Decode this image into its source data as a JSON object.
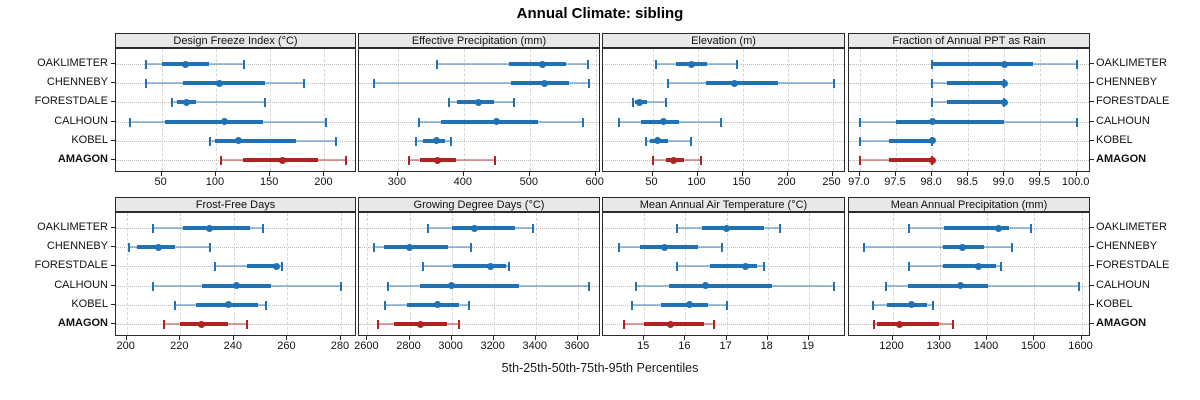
{
  "chart_data": {
    "type": "multipanel-percentile-dotplot",
    "title": "Annual Climate: sibling",
    "caption": "5th-25th-50th-75th-95th Percentiles",
    "percentile_order": [
      "p5",
      "p25",
      "p50",
      "p75",
      "p95"
    ],
    "stations": [
      "OAKLIMETER",
      "CHENNEBY",
      "FORESTDALE",
      "CALHOUN",
      "KOBEL",
      "AMAGON"
    ],
    "highlight_station": "AMAGON",
    "colors": {
      "series": "#2171b5",
      "series_light": "rgba(33,113,181,0.42)",
      "highlight": "#b22222",
      "highlight_light": "rgba(178,34,34,0.42)",
      "strip_bg": "#e8e8e8",
      "border": "#2b2b2b"
    },
    "layout_hints": {
      "grid": "dashed vertical at ticks, dotted row guides",
      "rows": 2,
      "cols": 4
    },
    "panels": [
      {
        "title": "Design Freeze Index (°C)",
        "xlim": [
          8,
          230
        ],
        "ticks": [
          50,
          100,
          150,
          200
        ],
        "tick_labels": [
          "50",
          "100",
          "150",
          "200"
        ],
        "values": [
          [
            36,
            50,
            72,
            94,
            126
          ],
          [
            36,
            70,
            103,
            145,
            181
          ],
          [
            60,
            64,
            73,
            82,
            145
          ],
          [
            21,
            53,
            108,
            143,
            201
          ],
          [
            95,
            99,
            121,
            174,
            211
          ],
          [
            105,
            125,
            161,
            194,
            220
          ]
        ]
      },
      {
        "title": "Effective Precipitation (mm)",
        "xlim": [
          241,
          608
        ],
        "ticks": [
          300,
          400,
          500,
          600
        ],
        "tick_labels": [
          "300",
          "400",
          "500",
          "600"
        ],
        "values": [
          [
            359,
            469,
            519,
            555,
            588
          ],
          [
            264,
            471,
            523,
            560,
            590
          ],
          [
            378,
            390,
            422,
            445,
            476
          ],
          [
            332,
            365,
            449,
            512,
            581
          ],
          [
            327,
            338,
            358,
            371,
            380
          ],
          [
            317,
            334,
            360,
            388,
            447
          ]
        ]
      },
      {
        "title": "Elevation (m)",
        "xlim": [
          -5,
          265
        ],
        "ticks": [
          50,
          100,
          150,
          200,
          250
        ],
        "tick_labels": [
          "50",
          "100",
          "150",
          "200",
          "250"
        ],
        "values": [
          [
            54,
            76,
            93,
            111,
            144
          ],
          [
            67,
            109,
            141,
            189,
            252
          ],
          [
            28,
            30,
            36,
            44,
            65
          ],
          [
            13,
            37,
            62,
            80,
            126
          ],
          [
            43,
            47,
            56,
            67,
            93
          ],
          [
            50,
            65,
            73,
            85,
            104
          ]
        ]
      },
      {
        "title": "Fraction of Annual PPT as Rain",
        "xlim": [
          96.85,
          100.2
        ],
        "ticks": [
          97,
          97.5,
          98,
          98.5,
          99,
          99.5,
          100
        ],
        "tick_labels": [
          "97.0",
          "97.5",
          "98.0",
          "98.5",
          "99.0",
          "99.5",
          "100.0"
        ],
        "values": [
          [
            98,
            98,
            99,
            99.4,
            100
          ],
          [
            98,
            98.2,
            99,
            99,
            99
          ],
          [
            98,
            98.2,
            99,
            99,
            99
          ],
          [
            97,
            97.5,
            98,
            99,
            100
          ],
          [
            97,
            97.4,
            98,
            98,
            98
          ],
          [
            97,
            97.4,
            98,
            98,
            98
          ]
        ]
      },
      {
        "title": "Frost-Free Days",
        "xlim": [
          196,
          286
        ],
        "ticks": [
          200,
          220,
          240,
          260,
          280
        ],
        "tick_labels": [
          "200",
          "220",
          "240",
          "260",
          "280"
        ],
        "values": [
          [
            210,
            221,
            231,
            246,
            251
          ],
          [
            201,
            204,
            212,
            218,
            231
          ],
          [
            233,
            245,
            256,
            257,
            258
          ],
          [
            210,
            228,
            241,
            254,
            280
          ],
          [
            218,
            226,
            238,
            249,
            252
          ],
          [
            214,
            220,
            228,
            238,
            245
          ]
        ]
      },
      {
        "title": "Growing Degree Days (°C)",
        "xlim": [
          2560,
          3710
        ],
        "ticks": [
          2600,
          2800,
          3000,
          3200,
          3400,
          3600
        ],
        "tick_labels": [
          "2600",
          "2800",
          "3000",
          "3200",
          "3400",
          "3600"
        ],
        "values": [
          [
            2890,
            3000,
            3110,
            3300,
            3385
          ],
          [
            2630,
            2680,
            2800,
            2985,
            3090
          ],
          [
            2865,
            3005,
            3185,
            3260,
            3275
          ],
          [
            2700,
            2850,
            3000,
            3320,
            3655
          ],
          [
            2685,
            2790,
            2935,
            3035,
            3085
          ],
          [
            2650,
            2725,
            2850,
            2980,
            3035
          ]
        ]
      },
      {
        "title": "Mean Annual Air Temperature (°C)",
        "xlim": [
          14.0,
          19.9
        ],
        "ticks": [
          15,
          16,
          17,
          18,
          19
        ],
        "tick_labels": [
          "15",
          "16",
          "17",
          "18",
          "19"
        ],
        "values": [
          [
            15.8,
            16.4,
            17.0,
            17.9,
            18.3
          ],
          [
            14.4,
            14.9,
            15.5,
            16.3,
            16.9
          ],
          [
            15.8,
            16.6,
            17.45,
            17.75,
            17.9
          ],
          [
            14.8,
            15.6,
            16.5,
            18.1,
            19.6
          ],
          [
            14.7,
            15.4,
            16.1,
            16.55,
            17.0
          ],
          [
            14.5,
            15.0,
            15.65,
            16.45,
            16.7
          ]
        ]
      },
      {
        "title": "Mean Annual Precipitation (mm)",
        "xlim": [
          1108,
          1620
        ],
        "ticks": [
          1200,
          1300,
          1400,
          1500,
          1600
        ],
        "tick_labels": [
          "1200",
          "1300",
          "1400",
          "1500",
          "1600"
        ],
        "values": [
          [
            1234,
            1309,
            1424,
            1447,
            1494
          ],
          [
            1140,
            1306,
            1349,
            1394,
            1452
          ],
          [
            1235,
            1306,
            1381,
            1418,
            1429
          ],
          [
            1186,
            1232,
            1344,
            1403,
            1595
          ],
          [
            1159,
            1189,
            1241,
            1274,
            1285
          ],
          [
            1161,
            1168,
            1214,
            1299,
            1327
          ]
        ]
      }
    ]
  }
}
